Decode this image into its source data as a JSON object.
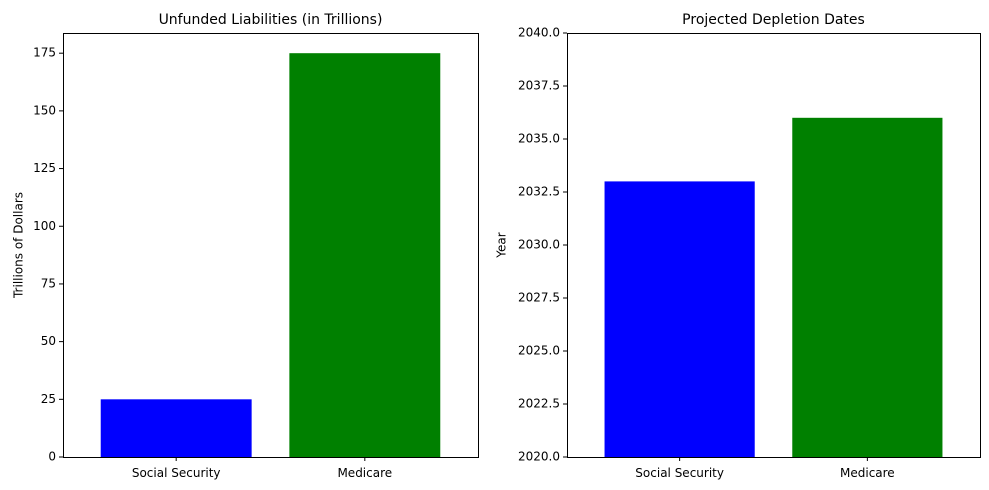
{
  "chart_data": [
    {
      "type": "bar",
      "title": "Unfunded Liabilities (in Trillions)",
      "xlabel": "",
      "ylabel": "Trillions of Dollars",
      "categories": [
        "Social Security",
        "Medicare"
      ],
      "values": [
        25,
        175
      ],
      "colors": [
        "#0000ff",
        "#008000"
      ],
      "ylim": [
        0,
        183.75
      ],
      "yticks": [
        0,
        25,
        50,
        75,
        100,
        125,
        150,
        175
      ],
      "ytick_labels": [
        "0",
        "25",
        "50",
        "75",
        "100",
        "125",
        "150",
        "175"
      ],
      "grid": false
    },
    {
      "type": "bar",
      "title": "Projected Depletion Dates",
      "xlabel": "",
      "ylabel": "Year",
      "categories": [
        "Social Security",
        "Medicare"
      ],
      "values": [
        2033,
        2036
      ],
      "colors": [
        "#0000ff",
        "#008000"
      ],
      "ylim": [
        2020,
        2040
      ],
      "yticks": [
        2020,
        2022.5,
        2025,
        2027.5,
        2030,
        2032.5,
        2035,
        2037.5,
        2040
      ],
      "ytick_labels": [
        "2020.0",
        "2022.5",
        "2025.0",
        "2027.5",
        "2030.0",
        "2032.5",
        "2035.0",
        "2037.5",
        "2040.0"
      ],
      "grid": false
    }
  ]
}
